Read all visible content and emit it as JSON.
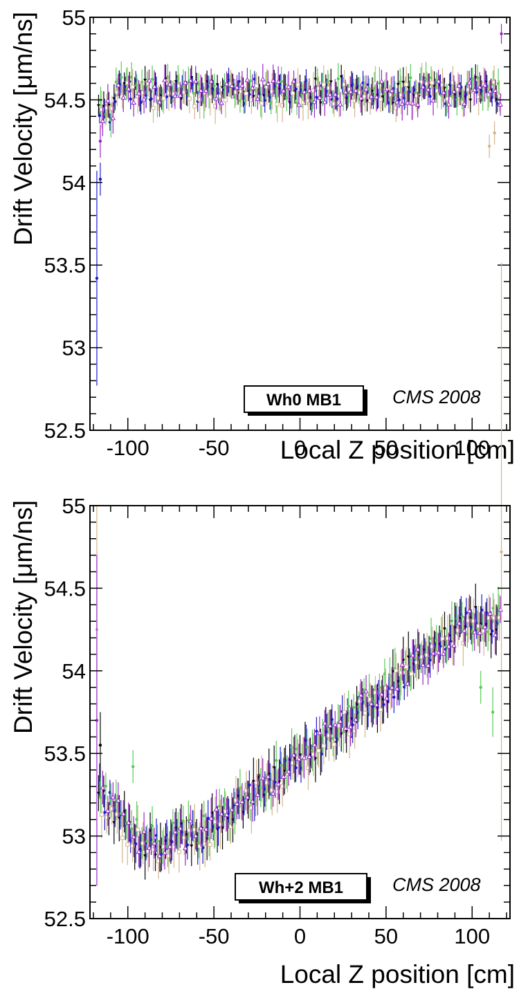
{
  "chart_data": [
    {
      "type": "scatter",
      "panel_label": "Wh0 MB1",
      "annotation": "CMS 2008",
      "xlabel": "Local Z position [cm]",
      "ylabel": "Drift Velocity [μm/ns]",
      "xlim": [
        -122,
        122
      ],
      "ylim": [
        52.5,
        55
      ],
      "xticks": [
        -100,
        -50,
        0,
        50,
        100
      ],
      "yticks": [
        52.5,
        53,
        53.5,
        54,
        54.5,
        55
      ],
      "profile": "flat",
      "series": [
        {
          "marker": "triangle-down",
          "color": "#000000",
          "base": 54.56,
          "error": 0.07,
          "x_offset": 0.0
        },
        {
          "marker": "circle",
          "color": "#1a1acc",
          "base": 54.55,
          "error": 0.06,
          "x_offset": 0.6
        },
        {
          "marker": "circle",
          "color": "#55cc55",
          "base": 54.56,
          "error": 0.08,
          "x_offset": 1.2
        },
        {
          "marker": "square-open",
          "color": "#d2b48c",
          "base": 54.53,
          "error": 0.09,
          "x_offset": 1.8
        },
        {
          "marker": "triangle-open",
          "color": "#9922cc",
          "base": 54.55,
          "error": 0.08,
          "x_offset": 2.4
        }
      ],
      "outliers": [
        {
          "x": -118,
          "y": 53.42,
          "err": 0.65,
          "color": "#1a1acc"
        },
        {
          "x": -116,
          "y": 54.02,
          "err": 0.1,
          "color": "#1a1acc"
        },
        {
          "x": -116,
          "y": 54.25,
          "err": 0.1,
          "color": "#9922cc"
        },
        {
          "x": 110,
          "y": 54.22,
          "err": 0.07,
          "color": "#d2b48c"
        },
        {
          "x": 113,
          "y": 54.3,
          "err": 0.07,
          "color": "#d2b48c"
        },
        {
          "x": 117,
          "y": 54.9,
          "err": 0.06,
          "color": "#9922cc"
        }
      ]
    },
    {
      "type": "scatter",
      "panel_label": "Wh+2 MB1",
      "annotation": "CMS 2008",
      "xlabel": "Local Z position [cm]",
      "ylabel": "Drift Velocity [μm/ns]",
      "xlim": [
        -122,
        122
      ],
      "ylim": [
        52.5,
        55
      ],
      "xticks": [
        -100,
        -50,
        0,
        50,
        100
      ],
      "yticks": [
        52.5,
        53,
        53.5,
        54,
        54.5,
        55
      ],
      "profile": "rising",
      "series": [
        {
          "marker": "triangle-down",
          "color": "#000000",
          "base": 0.0,
          "error": 0.12,
          "x_offset": 0.0
        },
        {
          "marker": "circle",
          "color": "#1a1acc",
          "base": 0.0,
          "error": 0.09,
          "x_offset": 0.6
        },
        {
          "marker": "circle",
          "color": "#55cc55",
          "base": 0.02,
          "error": 0.1,
          "x_offset": 1.2
        },
        {
          "marker": "square-open",
          "color": "#d2b48c",
          "base": -0.03,
          "error": 0.12,
          "x_offset": 1.8
        },
        {
          "marker": "triangle-open",
          "color": "#9922cc",
          "base": 0.0,
          "error": 0.1,
          "x_offset": 2.4
        }
      ],
      "outliers": [
        {
          "x": -118,
          "y": 54.25,
          "err": 0.75,
          "color": "#d2b48c"
        },
        {
          "x": -118,
          "y": 53.7,
          "err": 1.0,
          "color": "#9922cc"
        },
        {
          "x": -116,
          "y": 53.55,
          "err": 0.2,
          "color": "#000000"
        },
        {
          "x": -97,
          "y": 53.42,
          "err": 0.1,
          "color": "#55cc55"
        },
        {
          "x": 105,
          "y": 53.9,
          "err": 0.1,
          "color": "#55cc55"
        },
        {
          "x": 112,
          "y": 53.75,
          "err": 0.15,
          "color": "#55cc55"
        },
        {
          "x": 117,
          "y": 54.72,
          "err": 1.75,
          "color": "#d2b48c"
        }
      ]
    }
  ]
}
